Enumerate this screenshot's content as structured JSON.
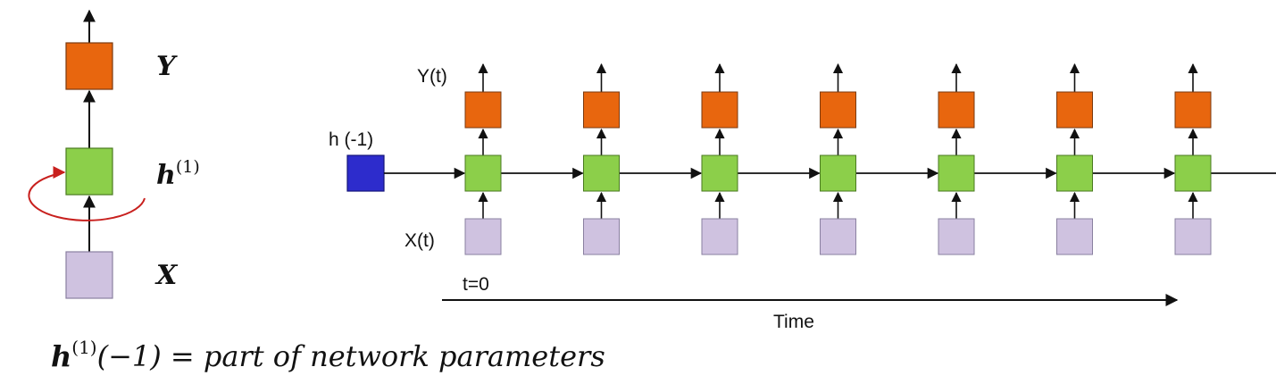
{
  "folded": {
    "output_label": "Y",
    "hidden_label": "h",
    "hidden_superscript": "(1)",
    "input_label": "X"
  },
  "unrolled": {
    "output_label": "Y(t)",
    "input_label": "X(t)",
    "initial_state_label": "h (-1)",
    "time_start_label": "t=0",
    "time_axis_label": "Time",
    "steps": 7
  },
  "caption": {
    "lhs_symbol": "h",
    "lhs_superscript": "(1)",
    "text": "(−1) = part of network parameters"
  },
  "colors": {
    "output": "#e8660e",
    "hidden": "#8ccf4a",
    "input": "#cfc2e0",
    "initial_state": "#2d2ccc",
    "recurrent_loop": "#c8201e",
    "stroke": "#222222"
  }
}
